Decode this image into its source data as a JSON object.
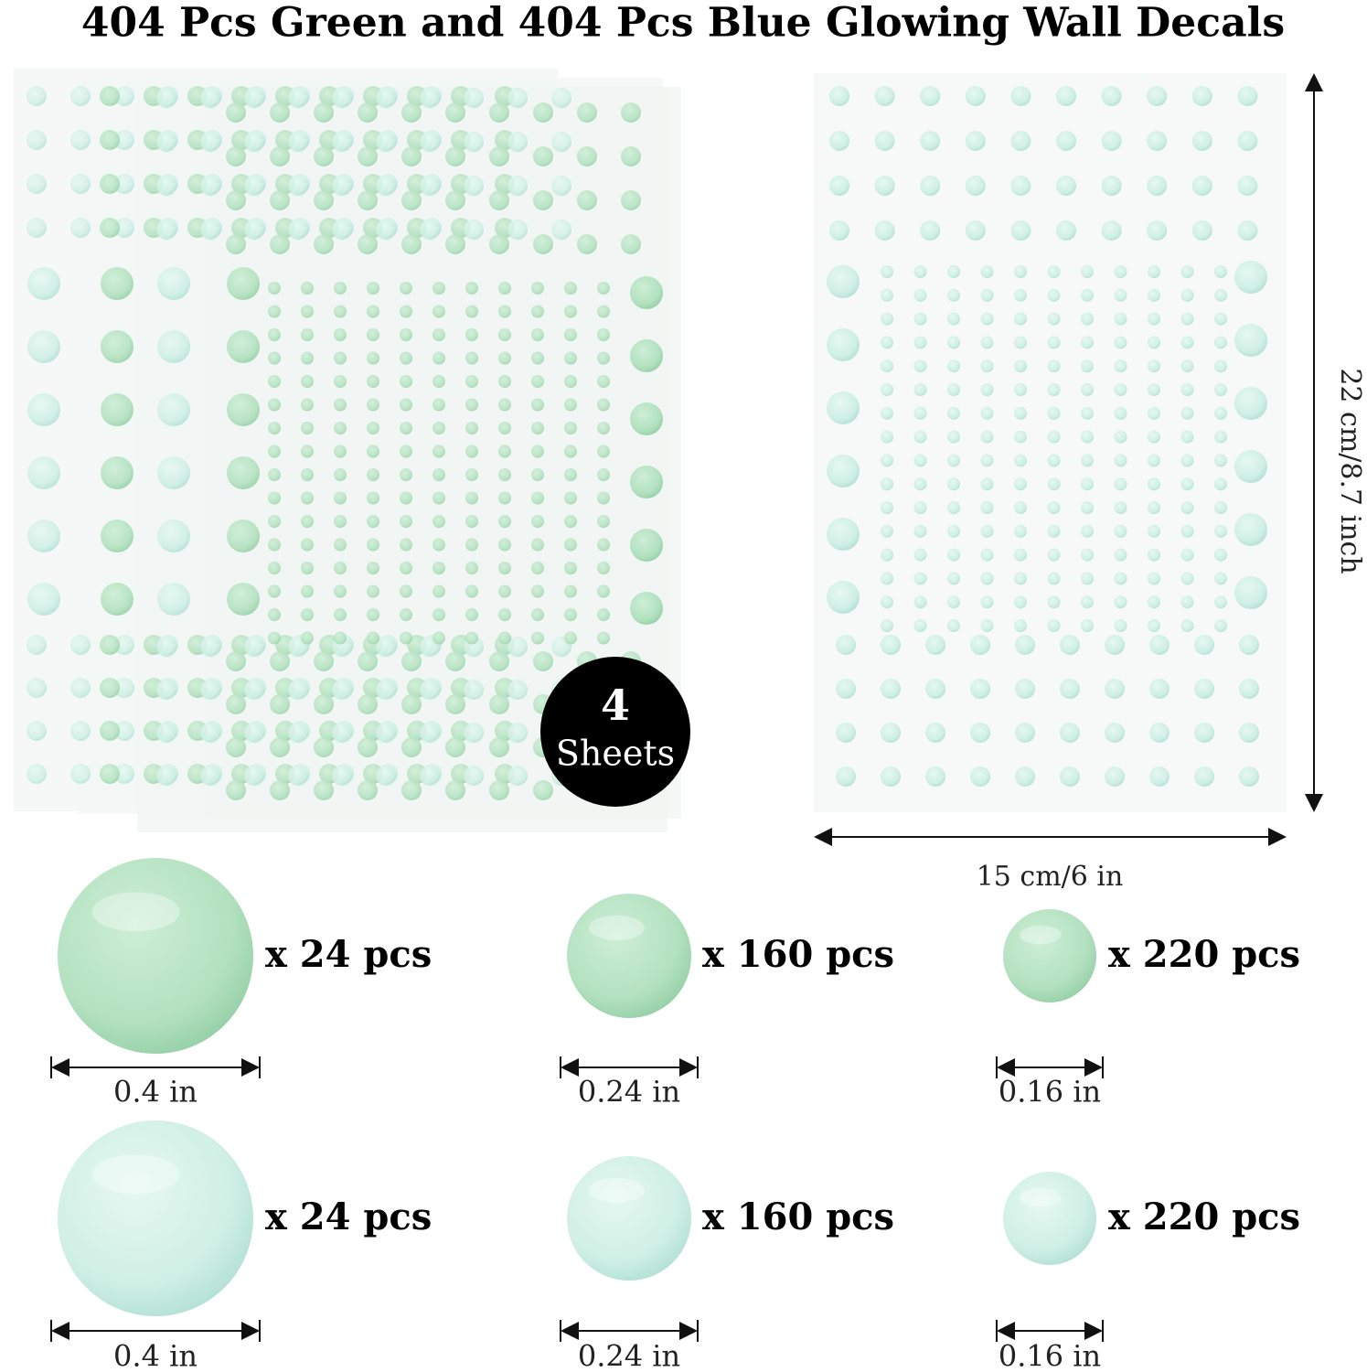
{
  "header": {
    "title": "404 Pcs Green and 404 Pcs Blue Glowing Wall Decals"
  },
  "badge": {
    "count": "4",
    "label": "Sheets"
  },
  "dimensions": {
    "height": "22 cm/8.7 inch",
    "width": "15 cm/6 in"
  },
  "sizes": {
    "rows": [
      {
        "items": [
          {
            "count": "x 24 pcs",
            "size": "0.4 in"
          },
          {
            "count": "x 160 pcs",
            "size": "0.24 in"
          },
          {
            "count": "x 220 pcs",
            "size": "0.16 in"
          }
        ]
      },
      {
        "items": [
          {
            "count": "x 24 pcs",
            "size": "0.4 in"
          },
          {
            "count": "x 160 pcs",
            "size": "0.24 in"
          },
          {
            "count": "x 220 pcs",
            "size": "0.16 in"
          }
        ]
      }
    ]
  }
}
